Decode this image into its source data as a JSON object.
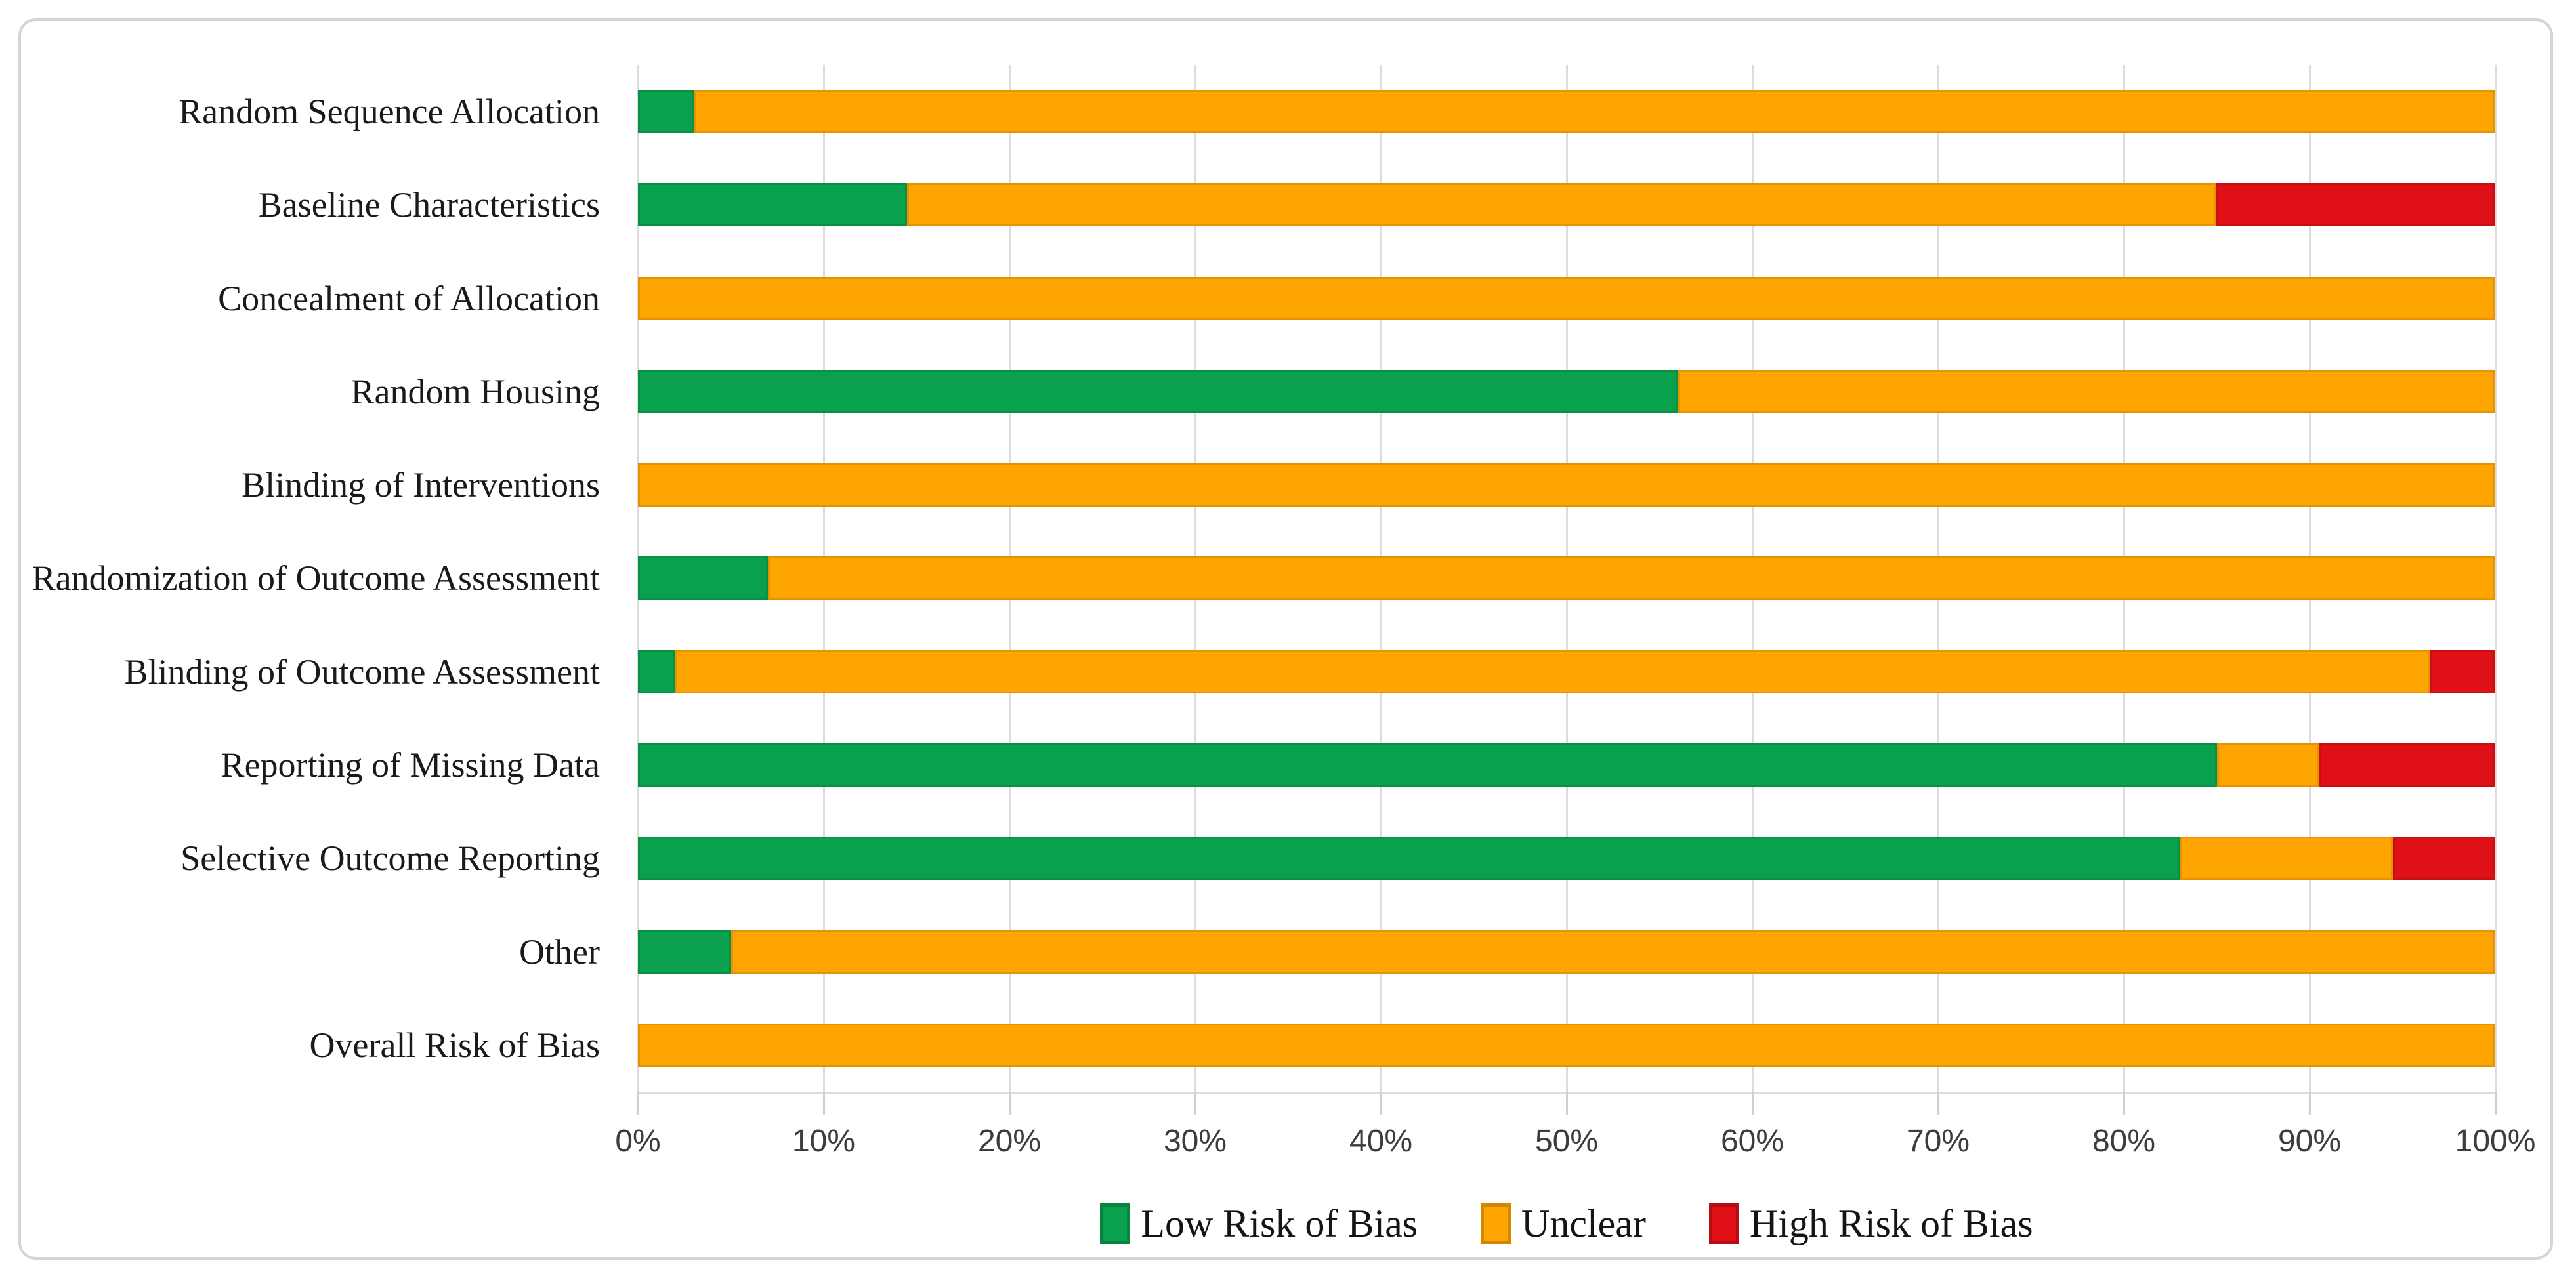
{
  "figure": {
    "description": "Horizontal stacked bar chart of risk-of-bias assessment results",
    "title": ""
  },
  "colors": {
    "low": "#0AA14E",
    "unclear": "#FFA502",
    "high": "#E01017",
    "grid": "#DCDCDC",
    "tick_label": "#3D3D3D",
    "category_label": "#1A1A1A",
    "panel_border": "#D5D5D5",
    "background": "#FFFFFF"
  },
  "chart_data": {
    "type": "bar",
    "orientation": "horizontal-stacked",
    "title": "",
    "xlabel": "",
    "ylabel": "",
    "xlim": [
      0,
      100
    ],
    "grid": "vertical",
    "legend_position": "bottom",
    "x_ticks": [
      "0%",
      "10%",
      "20%",
      "30%",
      "40%",
      "50%",
      "60%",
      "70%",
      "80%",
      "90%",
      "100%"
    ],
    "categories": [
      "Random Sequence Allocation",
      "Baseline Characteristics",
      "Concealment of Allocation",
      "Random Housing",
      "Blinding of Interventions",
      "Randomization of Outcome Assessment",
      "Blinding of Outcome Assessment",
      "Reporting of Missing Data",
      "Selective Outcome Reporting",
      "Other",
      "Overall Risk of Bias"
    ],
    "series": [
      {
        "name": "Low Risk of Bias",
        "color_key": "low",
        "values": [
          3,
          14.5,
          0,
          56,
          0,
          7,
          2,
          85,
          83,
          5,
          0
        ]
      },
      {
        "name": "Unclear",
        "color_key": "unclear",
        "values": [
          97,
          70.5,
          100,
          44,
          100,
          93,
          94.5,
          5.5,
          11.5,
          95,
          100
        ]
      },
      {
        "name": "High Risk of Bias",
        "color_key": "high",
        "values": [
          0,
          15,
          0,
          0,
          0,
          0,
          3.5,
          9.5,
          5.5,
          0,
          0
        ]
      }
    ]
  }
}
